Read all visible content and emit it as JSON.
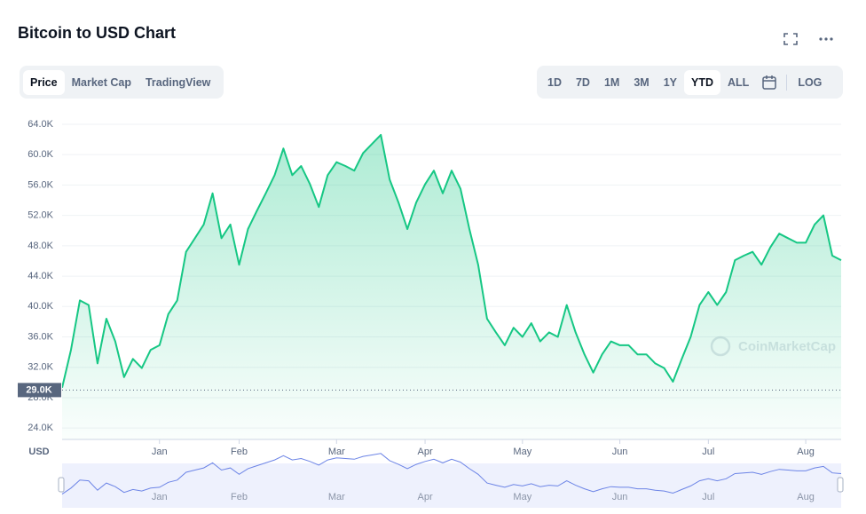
{
  "header": {
    "title": "Bitcoin to USD Chart"
  },
  "tabs": [
    "Price",
    "Market Cap",
    "TradingView"
  ],
  "ranges": [
    "1D",
    "7D",
    "1M",
    "3M",
    "1Y",
    "YTD",
    "ALL"
  ],
  "scale_toggle": "LOG",
  "chart_data": {
    "type": "line",
    "color": "#16c784",
    "currency_label": "USD",
    "watermark": "CoinMarketCap",
    "categories": [
      null,
      null,
      null,
      null,
      null,
      null,
      null,
      null,
      null,
      null,
      null,
      "Jan",
      null,
      null,
      null,
      null,
      null,
      null,
      null,
      null,
      "Feb",
      null,
      null,
      null,
      null,
      null,
      null,
      null,
      null,
      null,
      null,
      "Mar",
      null,
      null,
      null,
      null,
      null,
      null,
      null,
      null,
      null,
      "Apr",
      null,
      null,
      null,
      null,
      null,
      null,
      null,
      null,
      null,
      null,
      "May",
      null,
      null,
      null,
      null,
      null,
      null,
      null,
      null,
      null,
      null,
      "Jun",
      null,
      null,
      null,
      null,
      null,
      null,
      null,
      null,
      null,
      "Jul",
      null,
      null,
      null,
      null,
      null,
      null,
      null,
      null,
      null,
      null,
      "Aug",
      null,
      null,
      null,
      null
    ],
    "values": [
      29300,
      34300,
      40800,
      40200,
      32500,
      38400,
      35400,
      30700,
      33100,
      31900,
      34300,
      34900,
      39000,
      40800,
      47200,
      49000,
      50800,
      54900,
      49000,
      50800,
      45500,
      50200,
      52600,
      54900,
      57300,
      60800,
      57300,
      58500,
      56100,
      53100,
      57300,
      59000,
      58500,
      57900,
      60200,
      61400,
      62600,
      56700,
      53700,
      50200,
      53700,
      56100,
      57900,
      54900,
      57900,
      55500,
      50200,
      45500,
      38400,
      36600,
      34900,
      37200,
      36000,
      37800,
      35400,
      36600,
      36000,
      40200,
      36600,
      33700,
      31300,
      33700,
      35400,
      34900,
      34900,
      33700,
      33700,
      32500,
      31900,
      30100,
      33100,
      36000,
      40200,
      41900,
      40200,
      41900,
      46100,
      46700,
      47200,
      45500,
      47800,
      49600,
      49000,
      48400,
      48400,
      50800,
      52000,
      46700,
      46100
    ],
    "ylim": [
      22500,
      66100
    ],
    "yticks": [
      {
        "value": 24000,
        "label": "24.0K"
      },
      {
        "value": 28000,
        "label": "28.0K"
      },
      {
        "value": 32000,
        "label": "32.0K"
      },
      {
        "value": 36000,
        "label": "36.0K"
      },
      {
        "value": 40000,
        "label": "40.0K"
      },
      {
        "value": 44000,
        "label": "44.0K"
      },
      {
        "value": 48000,
        "label": "48.0K"
      },
      {
        "value": 52000,
        "label": "52.0K"
      },
      {
        "value": 56000,
        "label": "56.0K"
      },
      {
        "value": 60000,
        "label": "60.0K"
      },
      {
        "value": 64000,
        "label": "64.0K"
      }
    ],
    "baseline": {
      "value": 29000,
      "label": "29.0K"
    },
    "grid": true
  }
}
